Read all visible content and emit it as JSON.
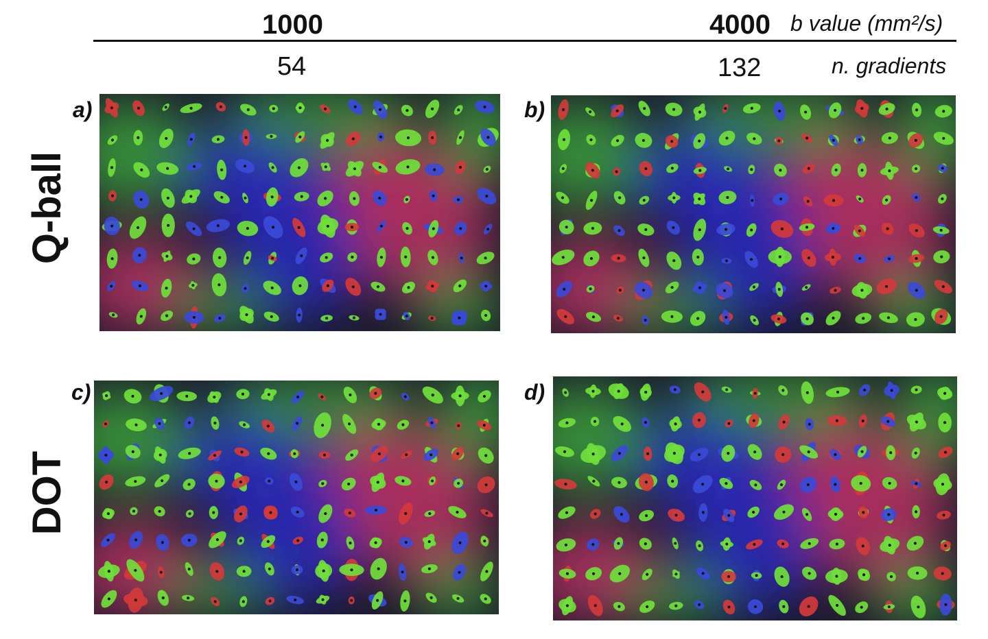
{
  "header": {
    "b_values": [
      "1000",
      "4000"
    ],
    "b_label": "b value (mm²/s)",
    "gradients": [
      "54",
      "132"
    ],
    "gradients_label": "n. gradients"
  },
  "rows": {
    "qball": "Q-ball",
    "dot": "DOT"
  },
  "panels": [
    {
      "letter": "a)",
      "seed": 11,
      "cols": 15,
      "rows": 8
    },
    {
      "letter": "b)",
      "seed": 23,
      "cols": 15,
      "rows": 8
    },
    {
      "letter": "c)",
      "seed": 37,
      "cols": 15,
      "rows": 8
    },
    {
      "letter": "d)",
      "seed": 49,
      "cols": 15,
      "rows": 8
    }
  ],
  "colors": {
    "green": "#3a9a3a",
    "red": "#b03060",
    "blue": "#2a2ab8",
    "dark": "#1a1a2a",
    "glyph_green": "#6fe03a",
    "glyph_red": "#d23a3a",
    "glyph_blue": "#3a4ad8"
  }
}
